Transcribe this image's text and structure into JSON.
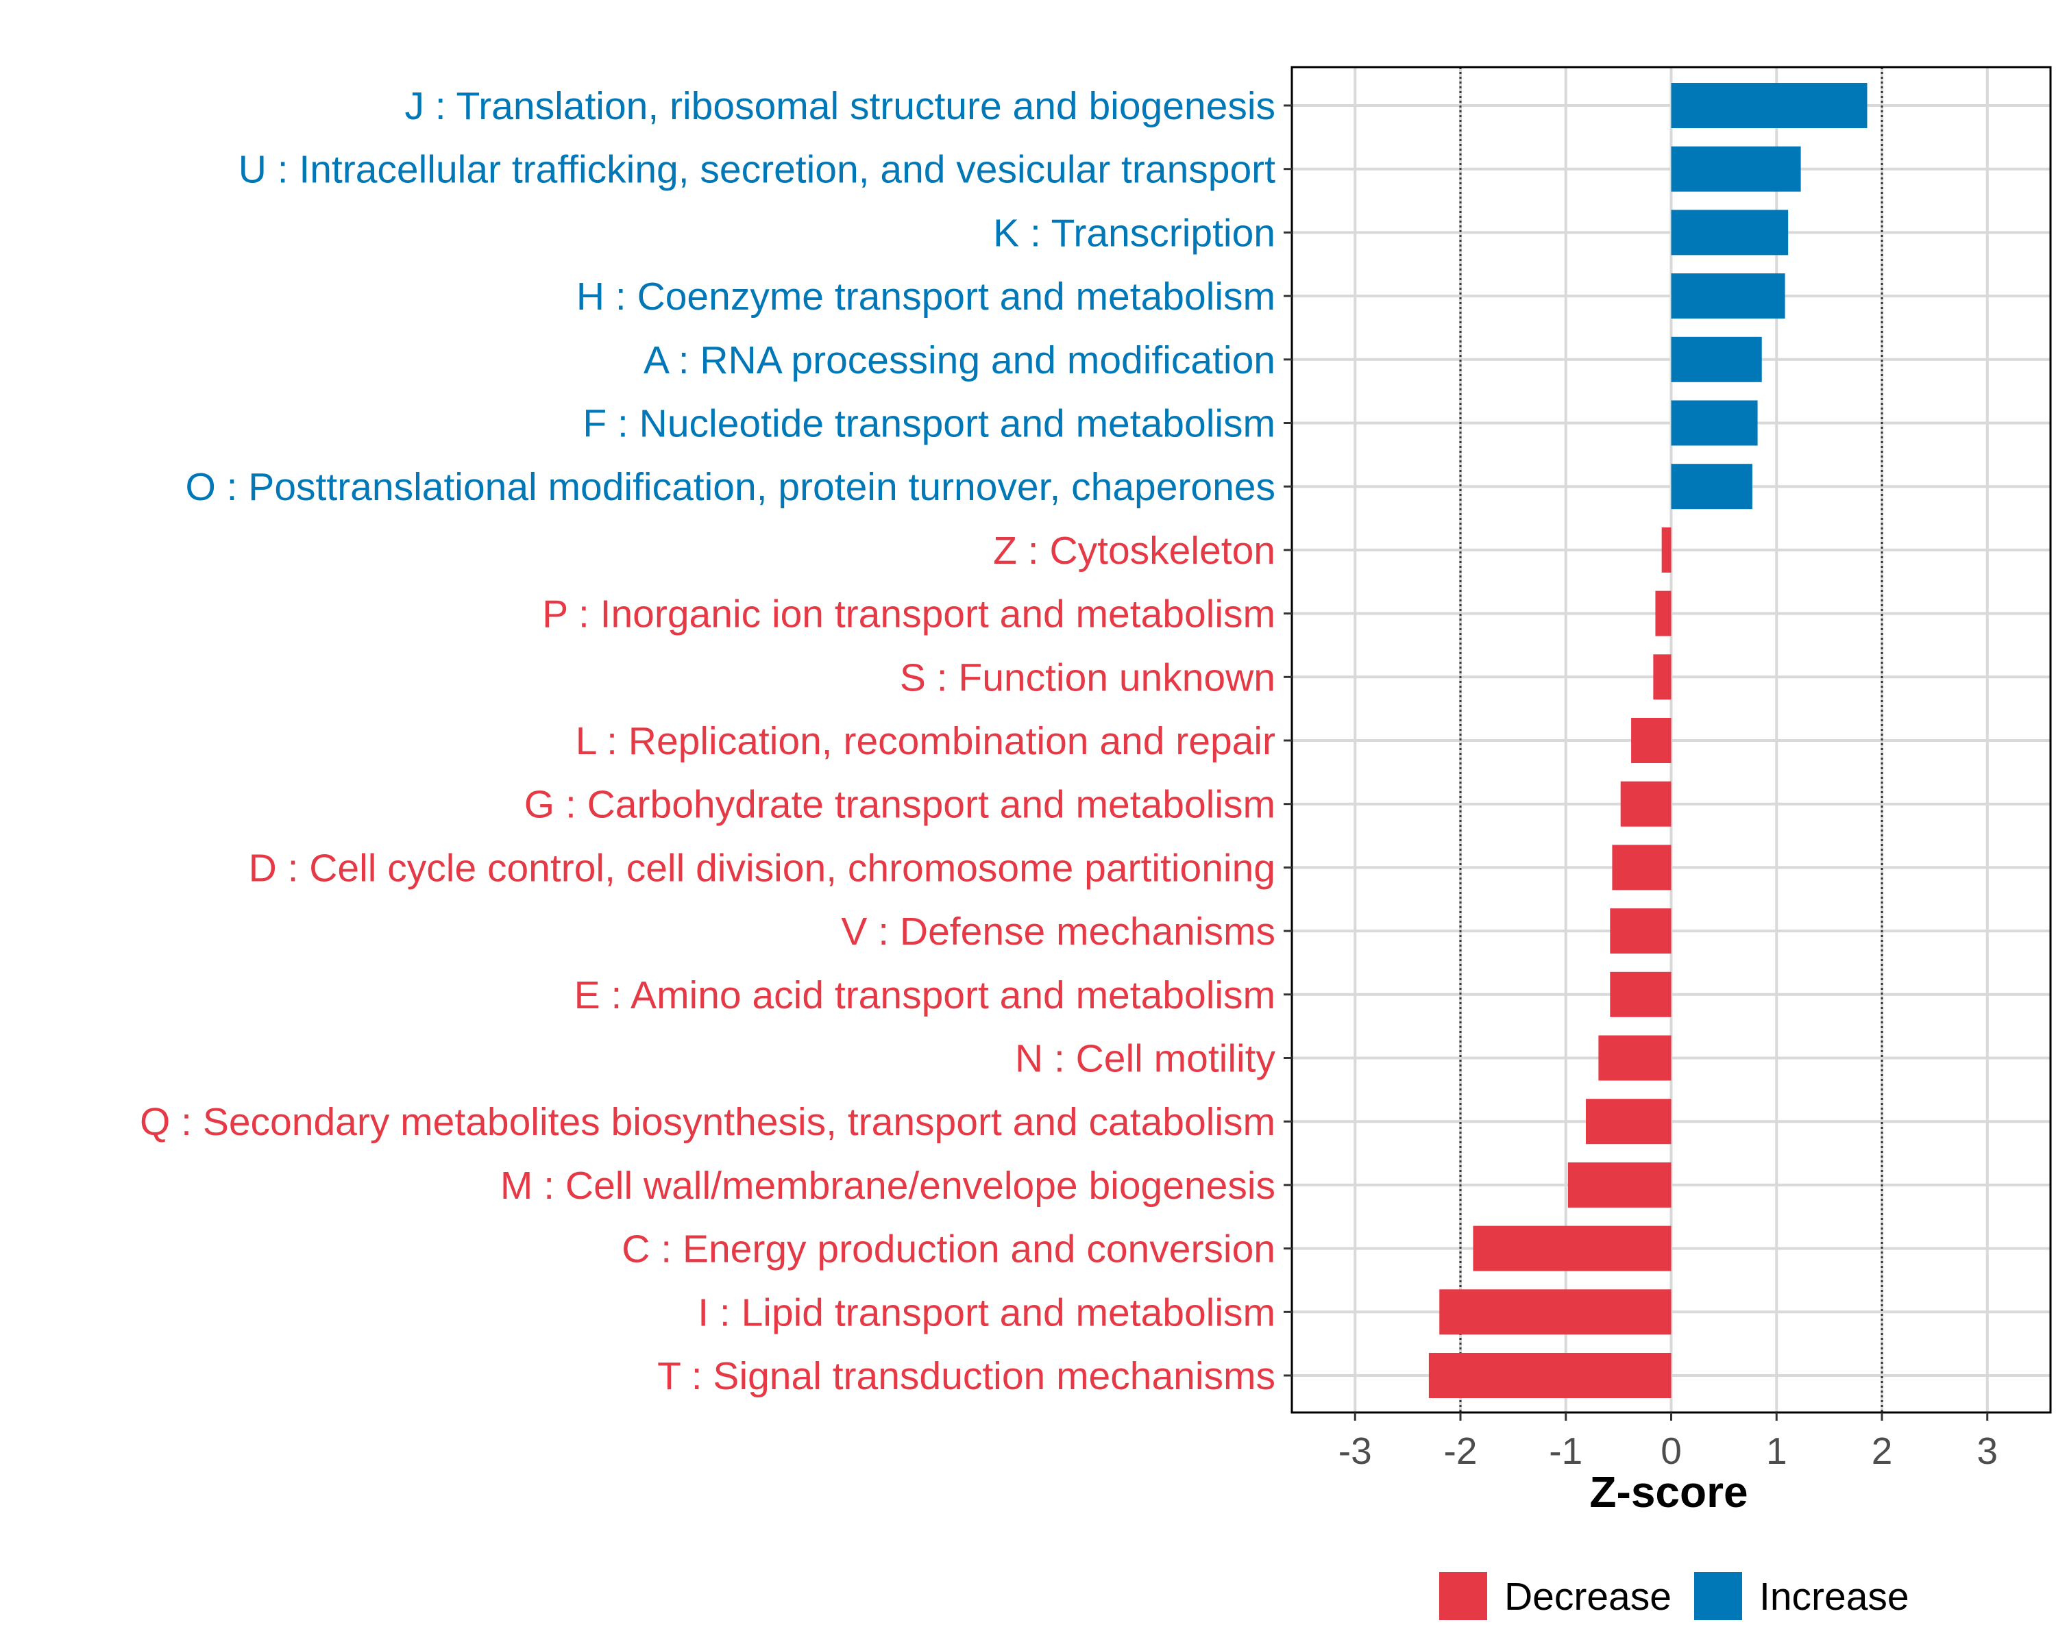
{
  "chart_data": {
    "type": "bar",
    "orientation": "horizontal",
    "title": "",
    "xlabel": "Z-score",
    "ylabel": "",
    "xlim": [
      -3.6,
      3.6
    ],
    "xticks": [
      -3,
      -2,
      -1,
      0,
      1,
      2,
      3
    ],
    "xtick_labels": [
      "-3",
      "-2",
      "-1",
      "0",
      "1",
      "2",
      "3"
    ],
    "reference_lines": [
      -2,
      2
    ],
    "grid": true,
    "legend_position": "bottom",
    "colors": {
      "Decrease": "#e63946",
      "Increase": "#0077b6",
      "axis": "#000000",
      "grid": "#d9d9d9",
      "tick_text": "#4d4d4d"
    },
    "legend": [
      {
        "label": "Decrease",
        "color": "#e63946"
      },
      {
        "label": "Increase",
        "color": "#0077b6"
      }
    ],
    "categories": [
      {
        "label": "J : Translation, ribosomal structure and biogenesis",
        "value": 1.86,
        "group": "Increase"
      },
      {
        "label": "U : Intracellular trafficking, secretion, and vesicular transport",
        "value": 1.23,
        "group": "Increase"
      },
      {
        "label": "K : Transcription",
        "value": 1.11,
        "group": "Increase"
      },
      {
        "label": "H : Coenzyme transport and metabolism",
        "value": 1.08,
        "group": "Increase"
      },
      {
        "label": "A : RNA processing and modification",
        "value": 0.86,
        "group": "Increase"
      },
      {
        "label": "F : Nucleotide transport and metabolism",
        "value": 0.82,
        "group": "Increase"
      },
      {
        "label": "O : Posttranslational modification, protein turnover, chaperones",
        "value": 0.77,
        "group": "Increase"
      },
      {
        "label": "Z : Cytoskeleton",
        "value": -0.09,
        "group": "Decrease"
      },
      {
        "label": "P : Inorganic ion transport and metabolism",
        "value": -0.15,
        "group": "Decrease"
      },
      {
        "label": "S : Function unknown",
        "value": -0.17,
        "group": "Decrease"
      },
      {
        "label": "L : Replication, recombination and repair",
        "value": -0.38,
        "group": "Decrease"
      },
      {
        "label": "G : Carbohydrate transport and metabolism",
        "value": -0.48,
        "group": "Decrease"
      },
      {
        "label": "D : Cell cycle control, cell division, chromosome partitioning",
        "value": -0.56,
        "group": "Decrease"
      },
      {
        "label": "V : Defense mechanisms",
        "value": -0.58,
        "group": "Decrease"
      },
      {
        "label": "E : Amino acid transport and metabolism",
        "value": -0.58,
        "group": "Decrease"
      },
      {
        "label": "N : Cell motility",
        "value": -0.69,
        "group": "Decrease"
      },
      {
        "label": "Q : Secondary metabolites biosynthesis, transport and catabolism",
        "value": -0.81,
        "group": "Decrease"
      },
      {
        "label": "M : Cell wall/membrane/envelope biogenesis",
        "value": -0.98,
        "group": "Decrease"
      },
      {
        "label": "C : Energy production and conversion",
        "value": -1.88,
        "group": "Decrease"
      },
      {
        "label": "I : Lipid transport and metabolism",
        "value": -2.2,
        "group": "Decrease"
      },
      {
        "label": "T : Signal transduction mechanisms",
        "value": -2.3,
        "group": "Decrease"
      }
    ]
  }
}
